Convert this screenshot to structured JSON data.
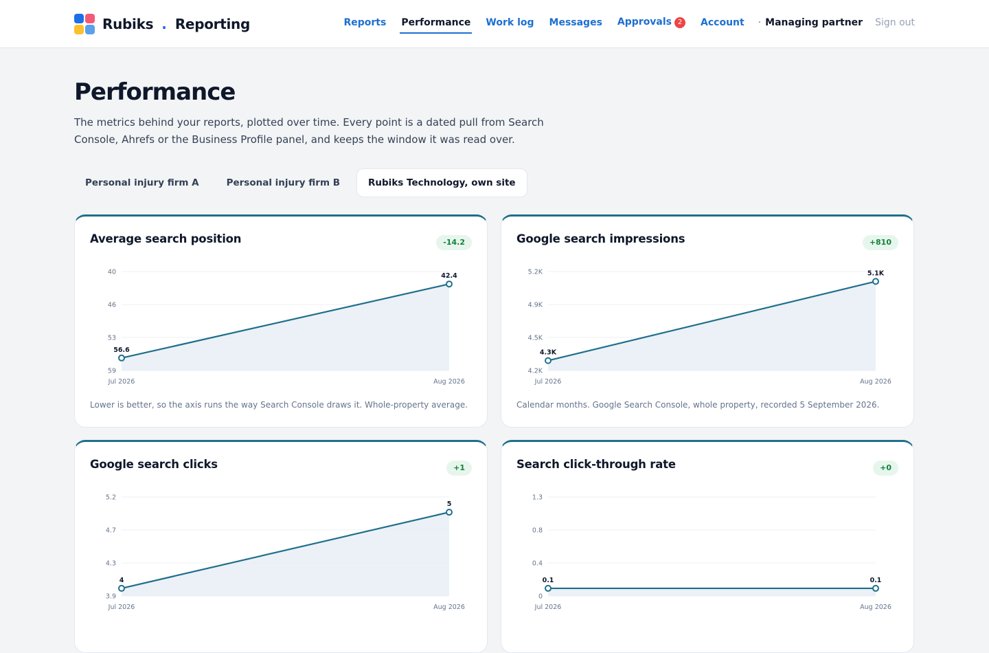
{
  "header": {
    "brand": "Rubiks",
    "brand_separator": ".",
    "product": "Reporting",
    "logo_colors": [
      "#1d6fe8",
      "#f25b78",
      "#fbc02d",
      "#5aa0ea"
    ],
    "nav": [
      {
        "label": "Reports",
        "active": false
      },
      {
        "label": "Performance",
        "active": true
      },
      {
        "label": "Work log",
        "active": false
      },
      {
        "label": "Messages",
        "active": false
      },
      {
        "label": "Approvals",
        "active": false,
        "badge": "2"
      },
      {
        "label": "Account",
        "active": false
      }
    ],
    "role": "Managing partner",
    "sign_out": "Sign out"
  },
  "page": {
    "title": "Performance",
    "lede": "The metrics behind your reports, plotted over time. Every point is a dated pull from Search Console, Ahrefs or the Business Profile panel, and keeps the window it was read over."
  },
  "tabs": [
    {
      "label": "Personal injury firm A",
      "active": false
    },
    {
      "label": "Personal injury firm B",
      "active": false
    },
    {
      "label": "Rubiks Technology, own site",
      "active": true
    }
  ],
  "colors": {
    "accent": "#1f6f8b",
    "link": "#1d6fd1",
    "delta_bg": "#e7f6ec",
    "delta_text": "#15803d",
    "area_fill": "#e9eff6"
  },
  "cards": [
    {
      "title": "Average search position",
      "delta": "-14.2",
      "note": "Lower is better, so the axis runs the way Search Console draws it. Whole-property average."
    },
    {
      "title": "Google search impressions",
      "delta": "+810",
      "note": "Calendar months. Google Search Console, whole property, recorded 5 September 2026."
    },
    {
      "title": "Google search clicks",
      "delta": "+1",
      "note": ""
    },
    {
      "title": "Search click-through rate",
      "delta": "+0",
      "note": ""
    }
  ],
  "chart_data": [
    {
      "type": "area",
      "title": "Average search position",
      "x": [
        "Jul 2026",
        "Aug 2026"
      ],
      "values": [
        56.6,
        42.4
      ],
      "value_labels": [
        "56.6",
        "42.4"
      ],
      "ylim": [
        59,
        40
      ],
      "inverted_y": true,
      "y_ticks": [
        "40",
        "46",
        "53",
        "59"
      ],
      "grid": true
    },
    {
      "type": "area",
      "title": "Google search impressions",
      "x": [
        "Jul 2026",
        "Aug 2026"
      ],
      "values": [
        4300,
        5100
      ],
      "value_labels": [
        "4.3K",
        "5.1K"
      ],
      "ylim": [
        4200,
        5200
      ],
      "y_ticks": [
        "5.2K",
        "4.9K",
        "4.5K",
        "4.2K"
      ],
      "grid": true
    },
    {
      "type": "area",
      "title": "Google search clicks",
      "x": [
        "Jul 2026",
        "Aug 2026"
      ],
      "values": [
        4,
        5
      ],
      "value_labels": [
        "4",
        "5"
      ],
      "ylim": [
        3.9,
        5.2
      ],
      "y_ticks": [
        "5.2",
        "4.7",
        "4.3",
        "3.9"
      ],
      "grid": true
    },
    {
      "type": "area",
      "title": "Search click-through rate",
      "x": [
        "Jul 2026",
        "Aug 2026"
      ],
      "values": [
        0.1,
        0.1
      ],
      "value_labels": [
        "0.1",
        "0.1"
      ],
      "ylim": [
        0,
        1.3
      ],
      "y_ticks": [
        "1.3",
        "0.8",
        "0.4",
        "0"
      ],
      "grid": true
    }
  ]
}
